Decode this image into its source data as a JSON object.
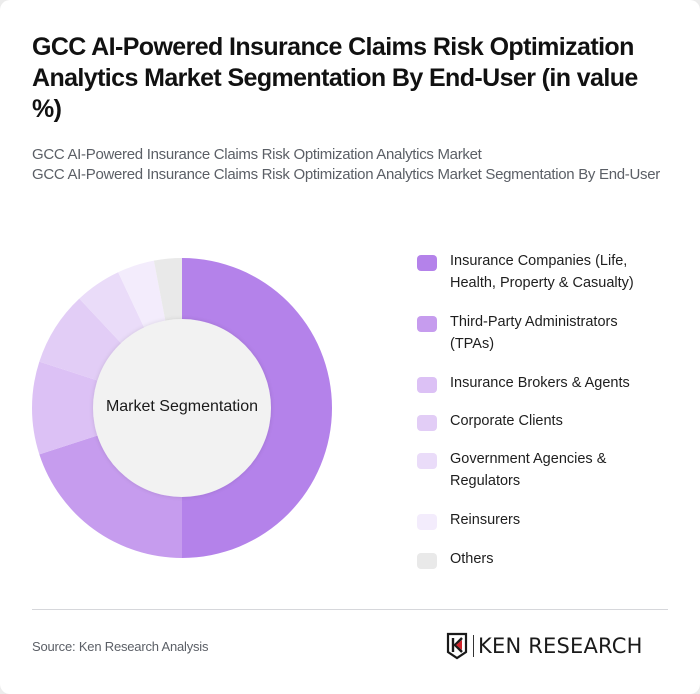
{
  "header": {
    "title": "GCC AI-Powered Insurance Claims Risk Optimization Analytics Market Segmentation By End-User (in value %)",
    "subtitle_line1": "GCC AI-Powered Insurance Claims Risk Optimization Analytics Market",
    "subtitle_line2": "GCC AI-Powered Insurance Claims Risk Optimization Analytics Market Segmentation By End-User"
  },
  "chart": {
    "center_label": "Market Segmentation",
    "legend": [
      {
        "label": "Insurance Companies (Life, Health, Property & Casualty)",
        "color": "#b482ea"
      },
      {
        "label": "Third-Party Administrators (TPAs)",
        "color": "#c69cee"
      },
      {
        "label": "Insurance Brokers & Agents",
        "color": "#dcc1f5"
      },
      {
        "label": "Corporate Clients",
        "color": "#e2cdf6"
      },
      {
        "label": "Government Agencies & Regulators",
        "color": "#eadcf9"
      },
      {
        "label": "Reinsurers",
        "color": "#f3ecfc"
      },
      {
        "label": "Others",
        "color": "#e9e9e9"
      }
    ]
  },
  "chart_data": {
    "type": "pie",
    "subtype": "donut",
    "title": "GCC AI-Powered Insurance Claims Risk Optimization Analytics Market Segmentation By End-User (in value %)",
    "center_label": "Market Segmentation",
    "categories": [
      "Insurance Companies (Life, Health, Property & Casualty)",
      "Third-Party Administrators (TPAs)",
      "Insurance Brokers & Agents",
      "Corporate Clients",
      "Government Agencies & Regulators",
      "Reinsurers",
      "Others"
    ],
    "values": [
      50,
      20,
      10,
      8,
      5,
      4,
      3
    ],
    "unit": "%",
    "colors": [
      "#b482ea",
      "#c69cee",
      "#dcc1f5",
      "#e2cdf6",
      "#eadcf9",
      "#f3ecfc",
      "#e9e9e9"
    ],
    "legend_position": "right"
  },
  "footer": {
    "source": "Source: Ken Research Analysis",
    "brand": "KEN RESEARCH"
  }
}
